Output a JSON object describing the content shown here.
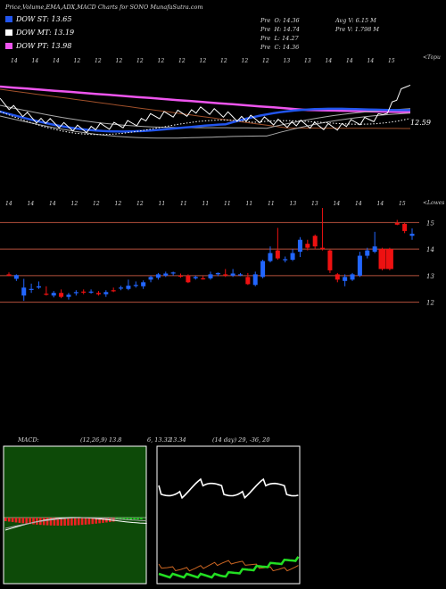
{
  "header": {
    "title": "Price,Volume,EMA,ADX,MACD Charts for SONO MunafaSutra.com",
    "ohlc": [
      {
        "k": "Pre",
        "v": "O: 14.36"
      },
      {
        "k": "Pre",
        "v": "H: 14.74"
      },
      {
        "k": "Pre",
        "v": "L: 14.27"
      },
      {
        "k": "Pre",
        "v": "C: 14.36"
      }
    ],
    "avg_volume": "Avg V: 6.15 M",
    "pre_volume": "Pre V: 1.798 M"
  },
  "legend": [
    {
      "label": "DOW ST: 13.65",
      "color": "#2255ee"
    },
    {
      "label": "DOW MT: 13.19",
      "color": "#ffffff"
    },
    {
      "label": "DOW PT: 13.98",
      "color": "#ee55ee"
    }
  ],
  "ema_panel": {
    "dates": [
      "14",
      "14",
      "14",
      "12",
      "12",
      "12",
      "12",
      "12",
      "12",
      "12",
      "12",
      "12",
      "12",
      "13",
      "13",
      "14",
      "14",
      "14",
      "15"
    ],
    "corner_label": "<Topu",
    "last_label": "12.59"
  },
  "price_panel": {
    "dates": [
      "14",
      "14",
      "14",
      "12",
      "12",
      "12",
      "12",
      "11",
      "11",
      "11",
      "11",
      "11",
      "11",
      "13",
      "13",
      "14",
      "14",
      "14",
      "15"
    ],
    "corner_label": "<Lowes",
    "yticks": [
      15,
      14,
      13,
      12
    ],
    "ylim": [
      11.55,
      15.45
    ]
  },
  "macd_panel": {
    "label": "MACD:",
    "params": "(12,26,9) 13.8",
    "values": "6, 13.32",
    "extra": "13.34"
  },
  "adx_panel": {
    "label": "(14 day) 29, -36, 20"
  },
  "chart_data": {
    "type": "candlestick",
    "ylim": [
      11.55,
      15.45
    ],
    "candles": [
      {
        "o": 13.05,
        "h": 13.12,
        "l": 12.98,
        "c": 13.0,
        "dir": "down"
      },
      {
        "o": 12.88,
        "h": 13.05,
        "l": 12.8,
        "c": 13.02,
        "dir": "up"
      },
      {
        "o": 12.25,
        "h": 12.88,
        "l": 12.05,
        "c": 12.55,
        "dir": "up"
      },
      {
        "o": 12.5,
        "h": 12.7,
        "l": 12.35,
        "c": 12.48,
        "dir": "up"
      },
      {
        "o": 12.6,
        "h": 12.78,
        "l": 12.5,
        "c": 12.55,
        "dir": "up"
      },
      {
        "o": 12.3,
        "h": 12.6,
        "l": 12.25,
        "c": 12.32,
        "dir": "down"
      },
      {
        "o": 12.25,
        "h": 12.42,
        "l": 12.18,
        "c": 12.35,
        "dir": "up"
      },
      {
        "o": 12.35,
        "h": 12.48,
        "l": 12.15,
        "c": 12.2,
        "dir": "down"
      },
      {
        "o": 12.2,
        "h": 12.35,
        "l": 12.1,
        "c": 12.28,
        "dir": "up"
      },
      {
        "o": 12.35,
        "h": 12.45,
        "l": 12.25,
        "c": 12.38,
        "dir": "up"
      },
      {
        "o": 12.4,
        "h": 12.48,
        "l": 12.3,
        "c": 12.38,
        "dir": "down"
      },
      {
        "o": 12.38,
        "h": 12.48,
        "l": 12.32,
        "c": 12.4,
        "dir": "up"
      },
      {
        "o": 12.35,
        "h": 12.42,
        "l": 12.25,
        "c": 12.3,
        "dir": "down"
      },
      {
        "o": 12.3,
        "h": 12.45,
        "l": 12.2,
        "c": 12.38,
        "dir": "up"
      },
      {
        "o": 12.45,
        "h": 12.55,
        "l": 12.38,
        "c": 12.42,
        "dir": "down"
      },
      {
        "o": 12.55,
        "h": 12.62,
        "l": 12.45,
        "c": 12.52,
        "dir": "up"
      },
      {
        "o": 12.5,
        "h": 12.85,
        "l": 12.45,
        "c": 12.62,
        "dir": "up"
      },
      {
        "o": 12.62,
        "h": 12.78,
        "l": 12.55,
        "c": 12.65,
        "dir": "up"
      },
      {
        "o": 12.6,
        "h": 12.82,
        "l": 12.5,
        "c": 12.75,
        "dir": "up"
      },
      {
        "o": 12.85,
        "h": 13.0,
        "l": 12.75,
        "c": 12.95,
        "dir": "up"
      },
      {
        "o": 12.92,
        "h": 13.1,
        "l": 12.85,
        "c": 13.05,
        "dir": "up"
      },
      {
        "o": 13.0,
        "h": 13.15,
        "l": 12.95,
        "c": 13.08,
        "dir": "up"
      },
      {
        "o": 13.08,
        "h": 13.15,
        "l": 13.0,
        "c": 13.12,
        "dir": "up"
      },
      {
        "o": 13.0,
        "h": 13.08,
        "l": 12.92,
        "c": 12.98,
        "dir": "down"
      },
      {
        "o": 13.0,
        "h": 13.05,
        "l": 12.72,
        "c": 12.75,
        "dir": "down"
      },
      {
        "o": 12.9,
        "h": 13.0,
        "l": 12.85,
        "c": 12.95,
        "dir": "up"
      },
      {
        "o": 12.9,
        "h": 12.98,
        "l": 12.85,
        "c": 12.88,
        "dir": "down"
      },
      {
        "o": 12.9,
        "h": 13.15,
        "l": 12.85,
        "c": 13.05,
        "dir": "up"
      },
      {
        "o": 13.05,
        "h": 13.12,
        "l": 12.98,
        "c": 13.1,
        "dir": "up"
      },
      {
        "o": 13.05,
        "h": 13.25,
        "l": 12.95,
        "c": 13.0,
        "dir": "down"
      },
      {
        "o": 13.0,
        "h": 13.25,
        "l": 12.95,
        "c": 13.08,
        "dir": "up"
      },
      {
        "o": 13.05,
        "h": 13.1,
        "l": 12.98,
        "c": 13.05,
        "dir": "up"
      },
      {
        "o": 12.95,
        "h": 13.1,
        "l": 12.65,
        "c": 12.68,
        "dir": "down"
      },
      {
        "o": 12.65,
        "h": 13.15,
        "l": 12.6,
        "c": 13.05,
        "dir": "up"
      },
      {
        "o": 12.95,
        "h": 13.6,
        "l": 12.9,
        "c": 13.55,
        "dir": "up"
      },
      {
        "o": 13.55,
        "h": 14.1,
        "l": 13.5,
        "c": 13.85,
        "dir": "up"
      },
      {
        "o": 13.95,
        "h": 14.8,
        "l": 13.6,
        "c": 13.65,
        "dir": "down"
      },
      {
        "o": 13.6,
        "h": 13.72,
        "l": 13.5,
        "c": 13.62,
        "dir": "up"
      },
      {
        "o": 13.6,
        "h": 14.0,
        "l": 13.55,
        "c": 13.85,
        "dir": "up"
      },
      {
        "o": 13.9,
        "h": 14.45,
        "l": 13.7,
        "c": 14.35,
        "dir": "up"
      },
      {
        "o": 14.2,
        "h": 14.35,
        "l": 13.95,
        "c": 14.05,
        "dir": "down"
      },
      {
        "o": 14.5,
        "h": 14.55,
        "l": 14.0,
        "c": 14.1,
        "dir": "down"
      },
      {
        "o": 14.05,
        "h": 15.55,
        "l": 13.95,
        "c": 14.0,
        "dir": "down"
      },
      {
        "o": 13.95,
        "h": 13.98,
        "l": 13.1,
        "c": 13.2,
        "dir": "down"
      },
      {
        "o": 13.05,
        "h": 13.1,
        "l": 12.75,
        "c": 12.85,
        "dir": "down"
      },
      {
        "o": 12.8,
        "h": 13.05,
        "l": 12.6,
        "c": 12.95,
        "dir": "up"
      },
      {
        "o": 12.85,
        "h": 13.1,
        "l": 12.8,
        "c": 13.05,
        "dir": "up"
      },
      {
        "o": 13.0,
        "h": 13.9,
        "l": 12.95,
        "c": 13.75,
        "dir": "up"
      },
      {
        "o": 13.75,
        "h": 14.05,
        "l": 13.65,
        "c": 13.95,
        "dir": "up"
      },
      {
        "o": 13.9,
        "h": 14.65,
        "l": 13.85,
        "c": 14.1,
        "dir": "up"
      },
      {
        "o": 14.0,
        "h": 14.05,
        "l": 13.2,
        "c": 13.25,
        "dir": "down"
      },
      {
        "o": 14.0,
        "h": 14.05,
        "l": 13.2,
        "c": 13.25,
        "dir": "down"
      },
      {
        "o": 14.98,
        "h": 15.1,
        "l": 14.9,
        "c": 14.92,
        "dir": "down"
      },
      {
        "o": 14.95,
        "h": 14.98,
        "l": 14.6,
        "c": 14.68,
        "dir": "down"
      },
      {
        "o": 14.5,
        "h": 14.78,
        "l": 14.35,
        "c": 14.58,
        "dir": "up"
      }
    ]
  }
}
